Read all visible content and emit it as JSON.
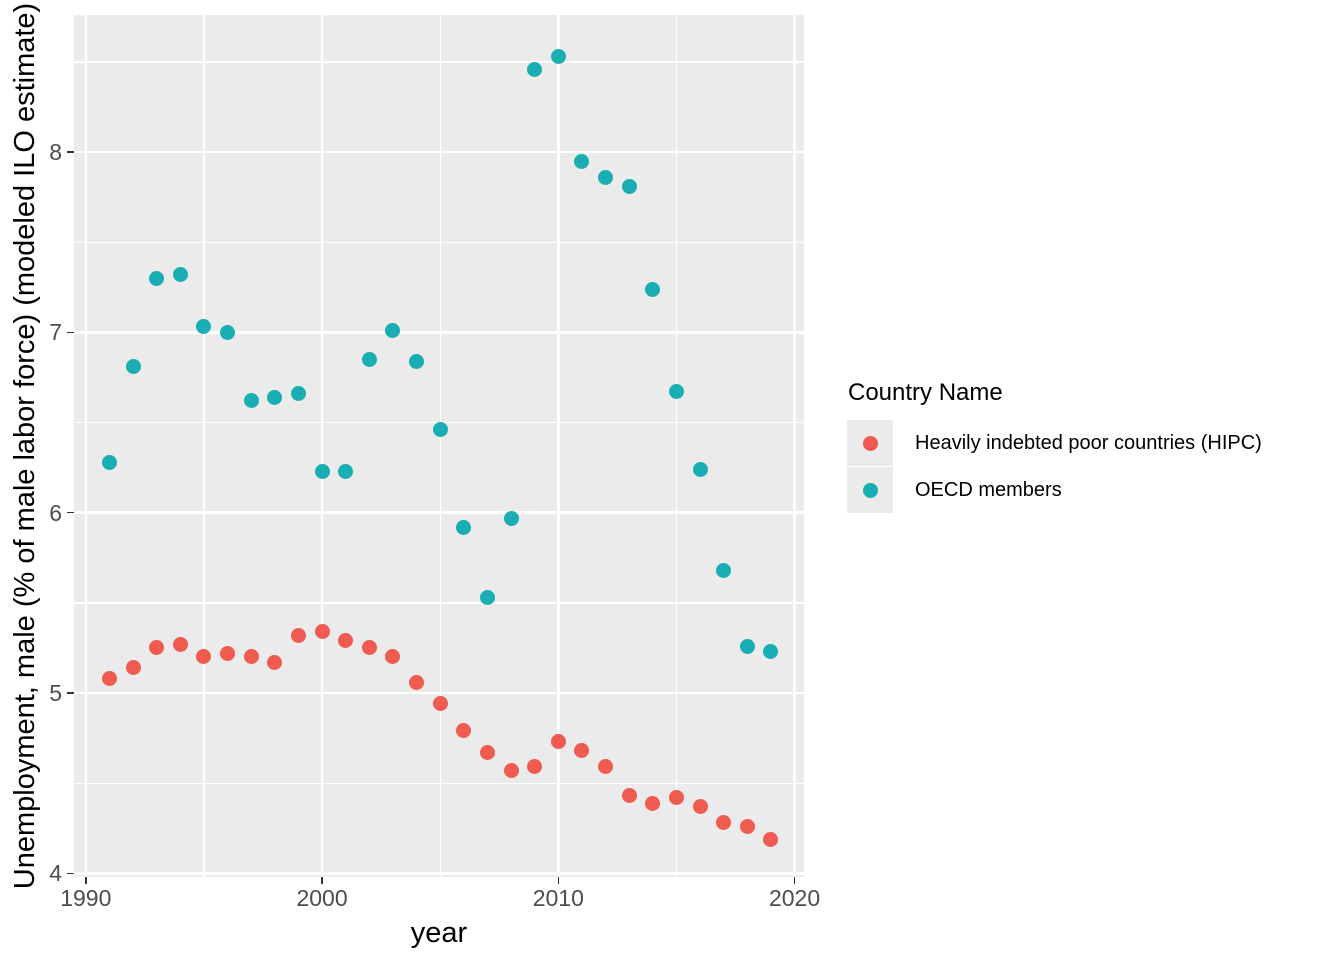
{
  "chart_data": {
    "type": "scatter",
    "title": "",
    "xlabel": "year",
    "ylabel": "Unemployment, male (% of male labor force) (modeled ILO estimate)",
    "legend_title": "Country Name",
    "legend_position": "right",
    "grid": true,
    "panel_background": "#ebebeb",
    "gridline_color": "#ffffff",
    "tick_label_color": "#4d4d4d",
    "xlim": [
      1989.5,
      2020.4
    ],
    "ylim": [
      3.98,
      8.76
    ],
    "x_ticks": [
      1990,
      2000,
      2010,
      2020
    ],
    "x_minor_ticks": [
      1995,
      2005,
      2015
    ],
    "y_ticks": [
      4,
      5,
      6,
      7,
      8
    ],
    "y_minor_ticks": [
      4.5,
      5.5,
      6.5,
      7.5,
      8.5
    ],
    "x": [
      1991,
      1992,
      1993,
      1994,
      1995,
      1996,
      1997,
      1998,
      1999,
      2000,
      2001,
      2002,
      2003,
      2004,
      2005,
      2006,
      2007,
      2008,
      2009,
      2010,
      2011,
      2012,
      2013,
      2014,
      2015,
      2016,
      2017,
      2018,
      2019
    ],
    "series": [
      {
        "name": "Heavily indebted poor countries (HIPC)",
        "color": "#ef5b51",
        "values": [
          5.08,
          5.14,
          5.25,
          5.27,
          5.2,
          5.22,
          5.2,
          5.17,
          5.32,
          5.34,
          5.29,
          5.25,
          5.2,
          5.06,
          4.94,
          4.79,
          4.67,
          4.57,
          4.59,
          4.73,
          4.68,
          4.59,
          4.43,
          4.39,
          4.42,
          4.37,
          4.28,
          4.26,
          4.19
        ]
      },
      {
        "name": "OECD members",
        "color": "#18aeb3",
        "values": [
          6.28,
          6.81,
          7.3,
          7.32,
          7.03,
          7.0,
          6.62,
          6.64,
          6.66,
          6.23,
          6.23,
          6.85,
          7.01,
          6.84,
          6.46,
          5.92,
          5.53,
          5.97,
          8.46,
          8.53,
          7.95,
          7.86,
          7.81,
          7.24,
          6.67,
          6.24,
          5.68,
          5.26,
          5.23
        ]
      }
    ]
  }
}
